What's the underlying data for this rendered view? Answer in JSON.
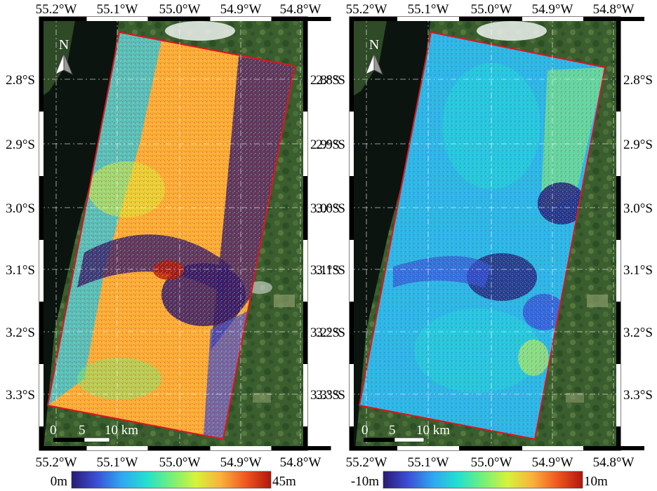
{
  "panels": [
    {
      "id": "left",
      "lon_ticks": [
        "55.2°W",
        "55.1°W",
        "55.0°W",
        "54.9°W",
        "54.8°W"
      ],
      "lat_ticks": [
        "2.8°S",
        "2.9°S",
        "3.0°S",
        "3.1°S",
        "3.2°S",
        "3.3°S"
      ],
      "north_label": "N",
      "scale_labels": [
        "0",
        "5",
        "10 km"
      ],
      "colorbar": {
        "min_label": "0m",
        "max_label": "45m",
        "colors": [
          "#2a1a74",
          "#3b4fd6",
          "#2fa7f0",
          "#22e0d0",
          "#74f07a",
          "#d8f23a",
          "#fbb03b",
          "#f0561f",
          "#b0160e"
        ]
      }
    },
    {
      "id": "right",
      "lon_ticks": [
        "55.2°W",
        "55.1°W",
        "55.0°W",
        "54.9°W",
        "54.8°W"
      ],
      "lat_ticks": [
        "2.8°S",
        "2.9°S",
        "3.0°S",
        "3.1°S",
        "3.2°S",
        "3.3°S"
      ],
      "north_label": "N",
      "scale_labels": [
        "0",
        "5",
        "10 km"
      ],
      "colorbar": {
        "min_label": "-10m",
        "max_label": "10m",
        "colors": [
          "#2a1a74",
          "#3b4fd6",
          "#2fa7f0",
          "#22e0d0",
          "#74f07a",
          "#d8f23a",
          "#fbb03b",
          "#f0561f",
          "#b0160e"
        ]
      }
    }
  ],
  "colors": {
    "footprint_outline": "#e0141c",
    "river": "#0c1410",
    "forest": "#3a5e2e"
  }
}
